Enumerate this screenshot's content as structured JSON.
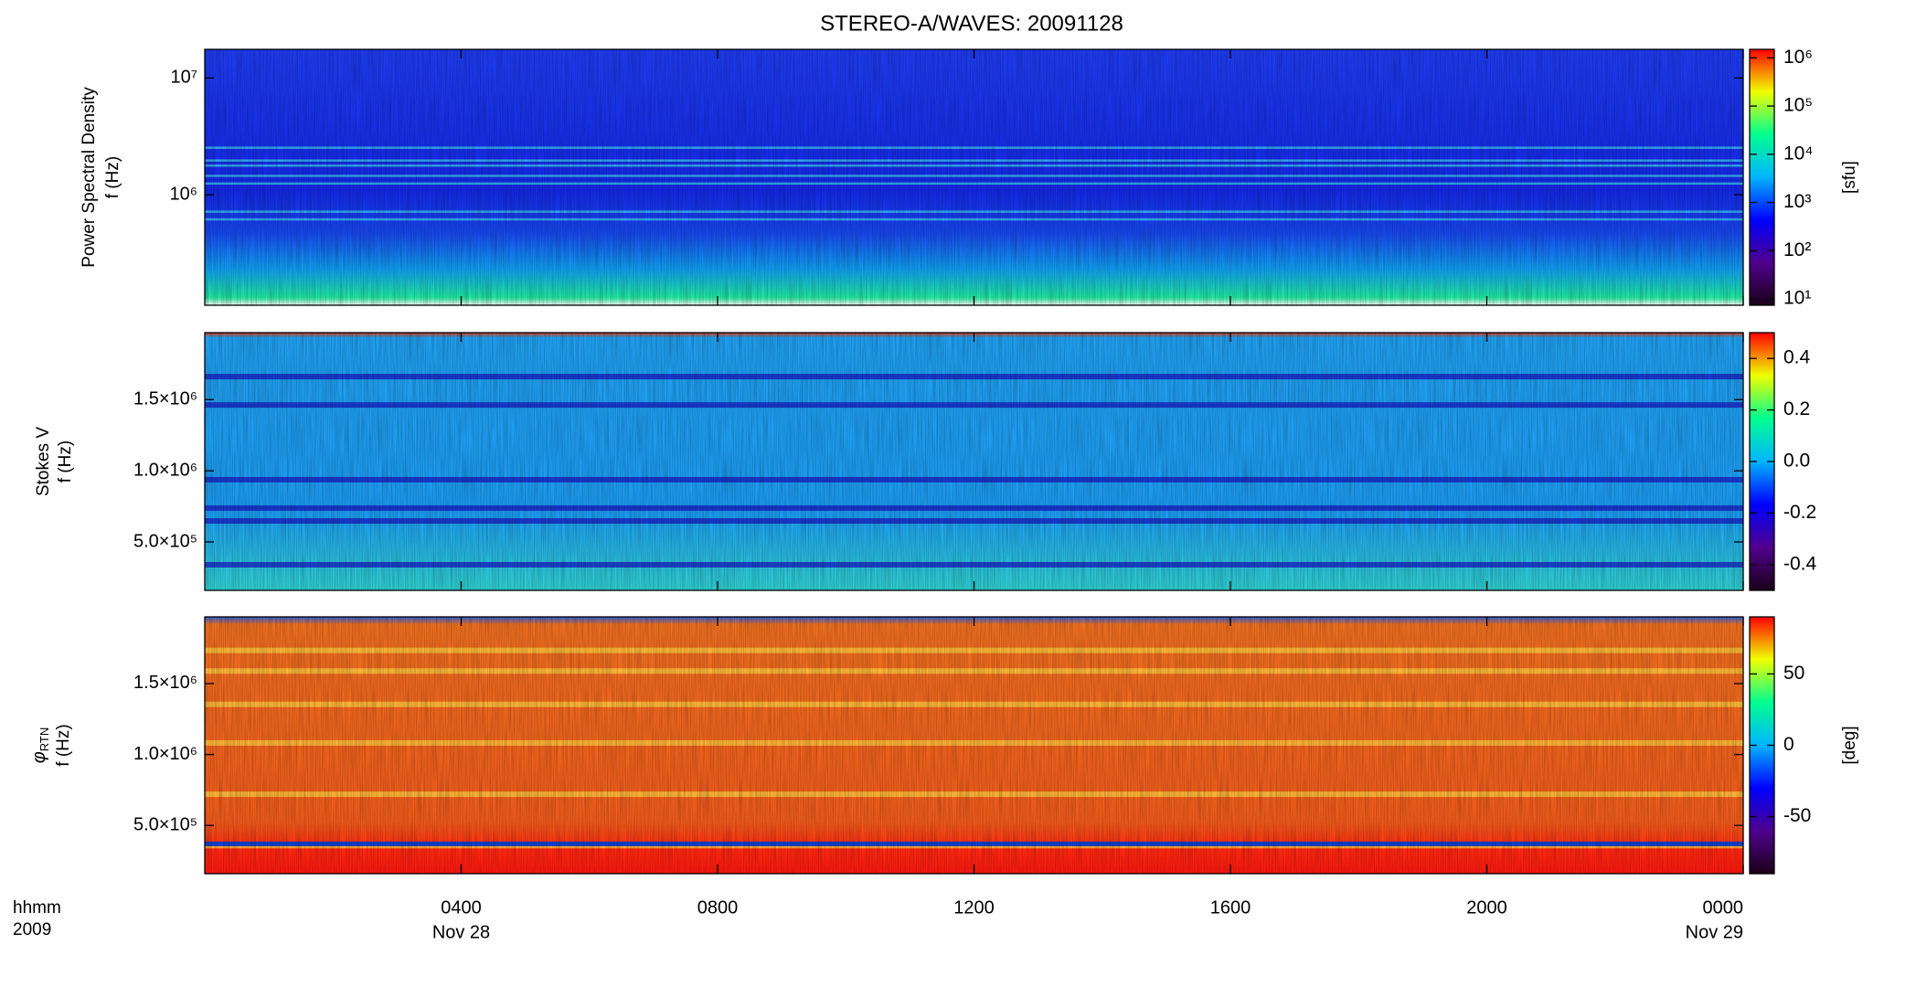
{
  "title": "STEREO-A/WAVES: 20091128",
  "x_axis": {
    "xlim": [
      0,
      24
    ],
    "xticks": [
      {
        "value": 4,
        "label": "0400"
      },
      {
        "value": 8,
        "label": "0800"
      },
      {
        "value": 12,
        "label": "1200"
      },
      {
        "value": 16,
        "label": "1600"
      },
      {
        "value": 20,
        "label": "2000"
      },
      {
        "value": 24,
        "label": "0000"
      }
    ],
    "date_labels": [
      {
        "value": 4,
        "label": "Nov 28"
      },
      {
        "value": 24,
        "label": "Nov 29"
      }
    ],
    "label": "hhmm",
    "year": "2009"
  },
  "chart_data": [
    {
      "type": "spectrogram",
      "ylabel": "Power Spectral Density",
      "ylabel2": "f (Hz)",
      "ylog": true,
      "ylim": [
        113000,
        17600000
      ],
      "yticks": [
        {
          "value": 1000000,
          "label": "10⁶"
        },
        {
          "value": 10000000,
          "label": "10⁷"
        }
      ],
      "colorbar": {
        "log": true,
        "lim": [
          7.4,
          1500000
        ],
        "label": "[sfu]",
        "ticks": [
          {
            "value": 10,
            "label": "10¹"
          },
          {
            "value": 100,
            "label": "10²"
          },
          {
            "value": 1000,
            "label": "10³"
          },
          {
            "value": 10000,
            "label": "10⁴"
          },
          {
            "value": 100000,
            "label": "10⁵"
          },
          {
            "value": 1000000,
            "label": "10⁶"
          }
        ]
      },
      "colormap": [
        "#1a0018",
        "#50008c",
        "#0000ff",
        "#00b4ff",
        "#00ff90",
        "#f0ff00",
        "#ff0000"
      ]
    },
    {
      "type": "spectrogram",
      "ylabel": "Stokes V",
      "ylabel2": "f (Hz)",
      "ylog": false,
      "ylim": [
        160000,
        1970000
      ],
      "yticks": [
        {
          "value": 500000,
          "label": "5.0×10⁵"
        },
        {
          "value": 1000000,
          "label": "1.0×10⁶"
        },
        {
          "value": 1500000,
          "label": "1.5×10⁶"
        }
      ],
      "colorbar": {
        "log": false,
        "lim": [
          -0.5,
          0.5
        ],
        "label": "",
        "ticks": [
          -0.4,
          -0.2,
          {
            "value": 0,
            "label": "0.0"
          },
          0.2,
          0.4
        ]
      },
      "colormap": [
        "#1a0018",
        "#50008c",
        "#0000ff",
        "#00b4ff",
        "#00ff90",
        "#f0ff00",
        "#ff0000"
      ]
    },
    {
      "type": "spectrogram",
      "ylabel": "φ",
      "ylabel_sub": "RTN",
      "ylabel2": "f (Hz)",
      "ylog": false,
      "ylim": [
        160000,
        1970000
      ],
      "yticks": [
        {
          "value": 500000,
          "label": "5.0×10⁵"
        },
        {
          "value": 1000000,
          "label": "1.0×10⁶"
        },
        {
          "value": 1500000,
          "label": "1.5×10⁶"
        }
      ],
      "colorbar": {
        "log": false,
        "lim": [
          -90,
          90
        ],
        "label": "[deg]",
        "ticks": [
          -50,
          0,
          50
        ]
      },
      "colormap": [
        "#1a0018",
        "#50008c",
        "#0000ff",
        "#00b4ff",
        "#00ff90",
        "#f0ff00",
        "#ff0000"
      ]
    }
  ]
}
